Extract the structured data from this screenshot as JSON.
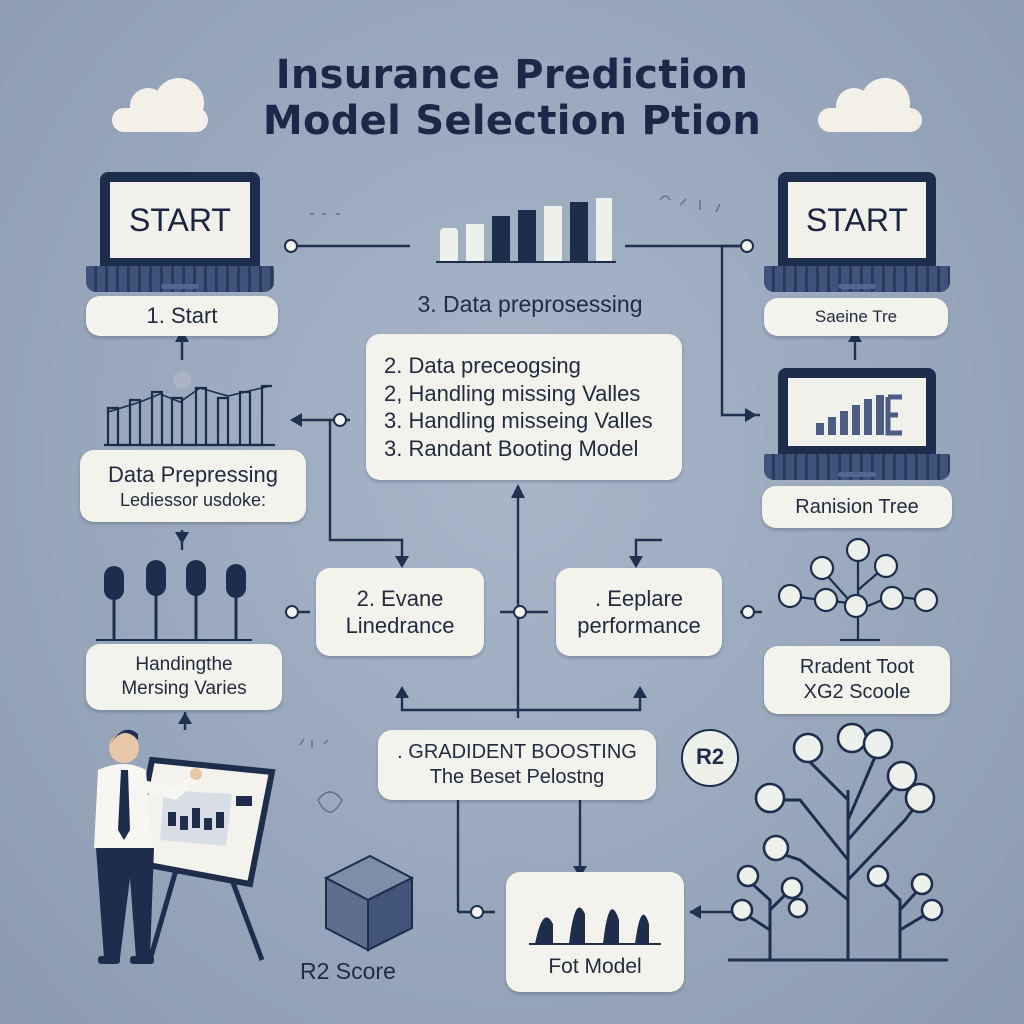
{
  "title": {
    "line1": "Insurance Prediction",
    "line2": "Model Selection Ption"
  },
  "laptops": {
    "left_screen": "START",
    "right_screen": "START"
  },
  "labels": {
    "start": "1. Start",
    "data_preprocessing_top": "3. Data preprosessing",
    "sauine": "Saeine Tre",
    "steps": [
      "2. Data preceogsing",
      "2, Handling missing Valles",
      "3. Handling misseing Valles",
      "3. Randant Booting Model"
    ],
    "data_prepressing_left": {
      "line1": "Data Prepressing",
      "line2": "Lediessor usdoke:"
    },
    "ranision_tree": "Ranision Tree",
    "evane": {
      "line1": "2. Evane",
      "line2": "Linedrance"
    },
    "eeplare": {
      "line1": ". Eeplare",
      "line2": "performance"
    },
    "handling": {
      "line1": "Handingthe",
      "line2": "Mersing Varies"
    },
    "rradent": {
      "line1": "Rradent Toot",
      "line2": "XG2 Scoole"
    },
    "gradient": {
      "line1": ". GRADIDENT BOOSTING",
      "line2": "The Beset Pelostng"
    },
    "r2_score": "R2 Score",
    "fot_model": "Fot Model",
    "r2_badge": "R2"
  },
  "colors": {
    "background": "#98a7bc",
    "navy": "#1f2d4d",
    "card": "#f4f2ec",
    "wire": "#223050"
  }
}
